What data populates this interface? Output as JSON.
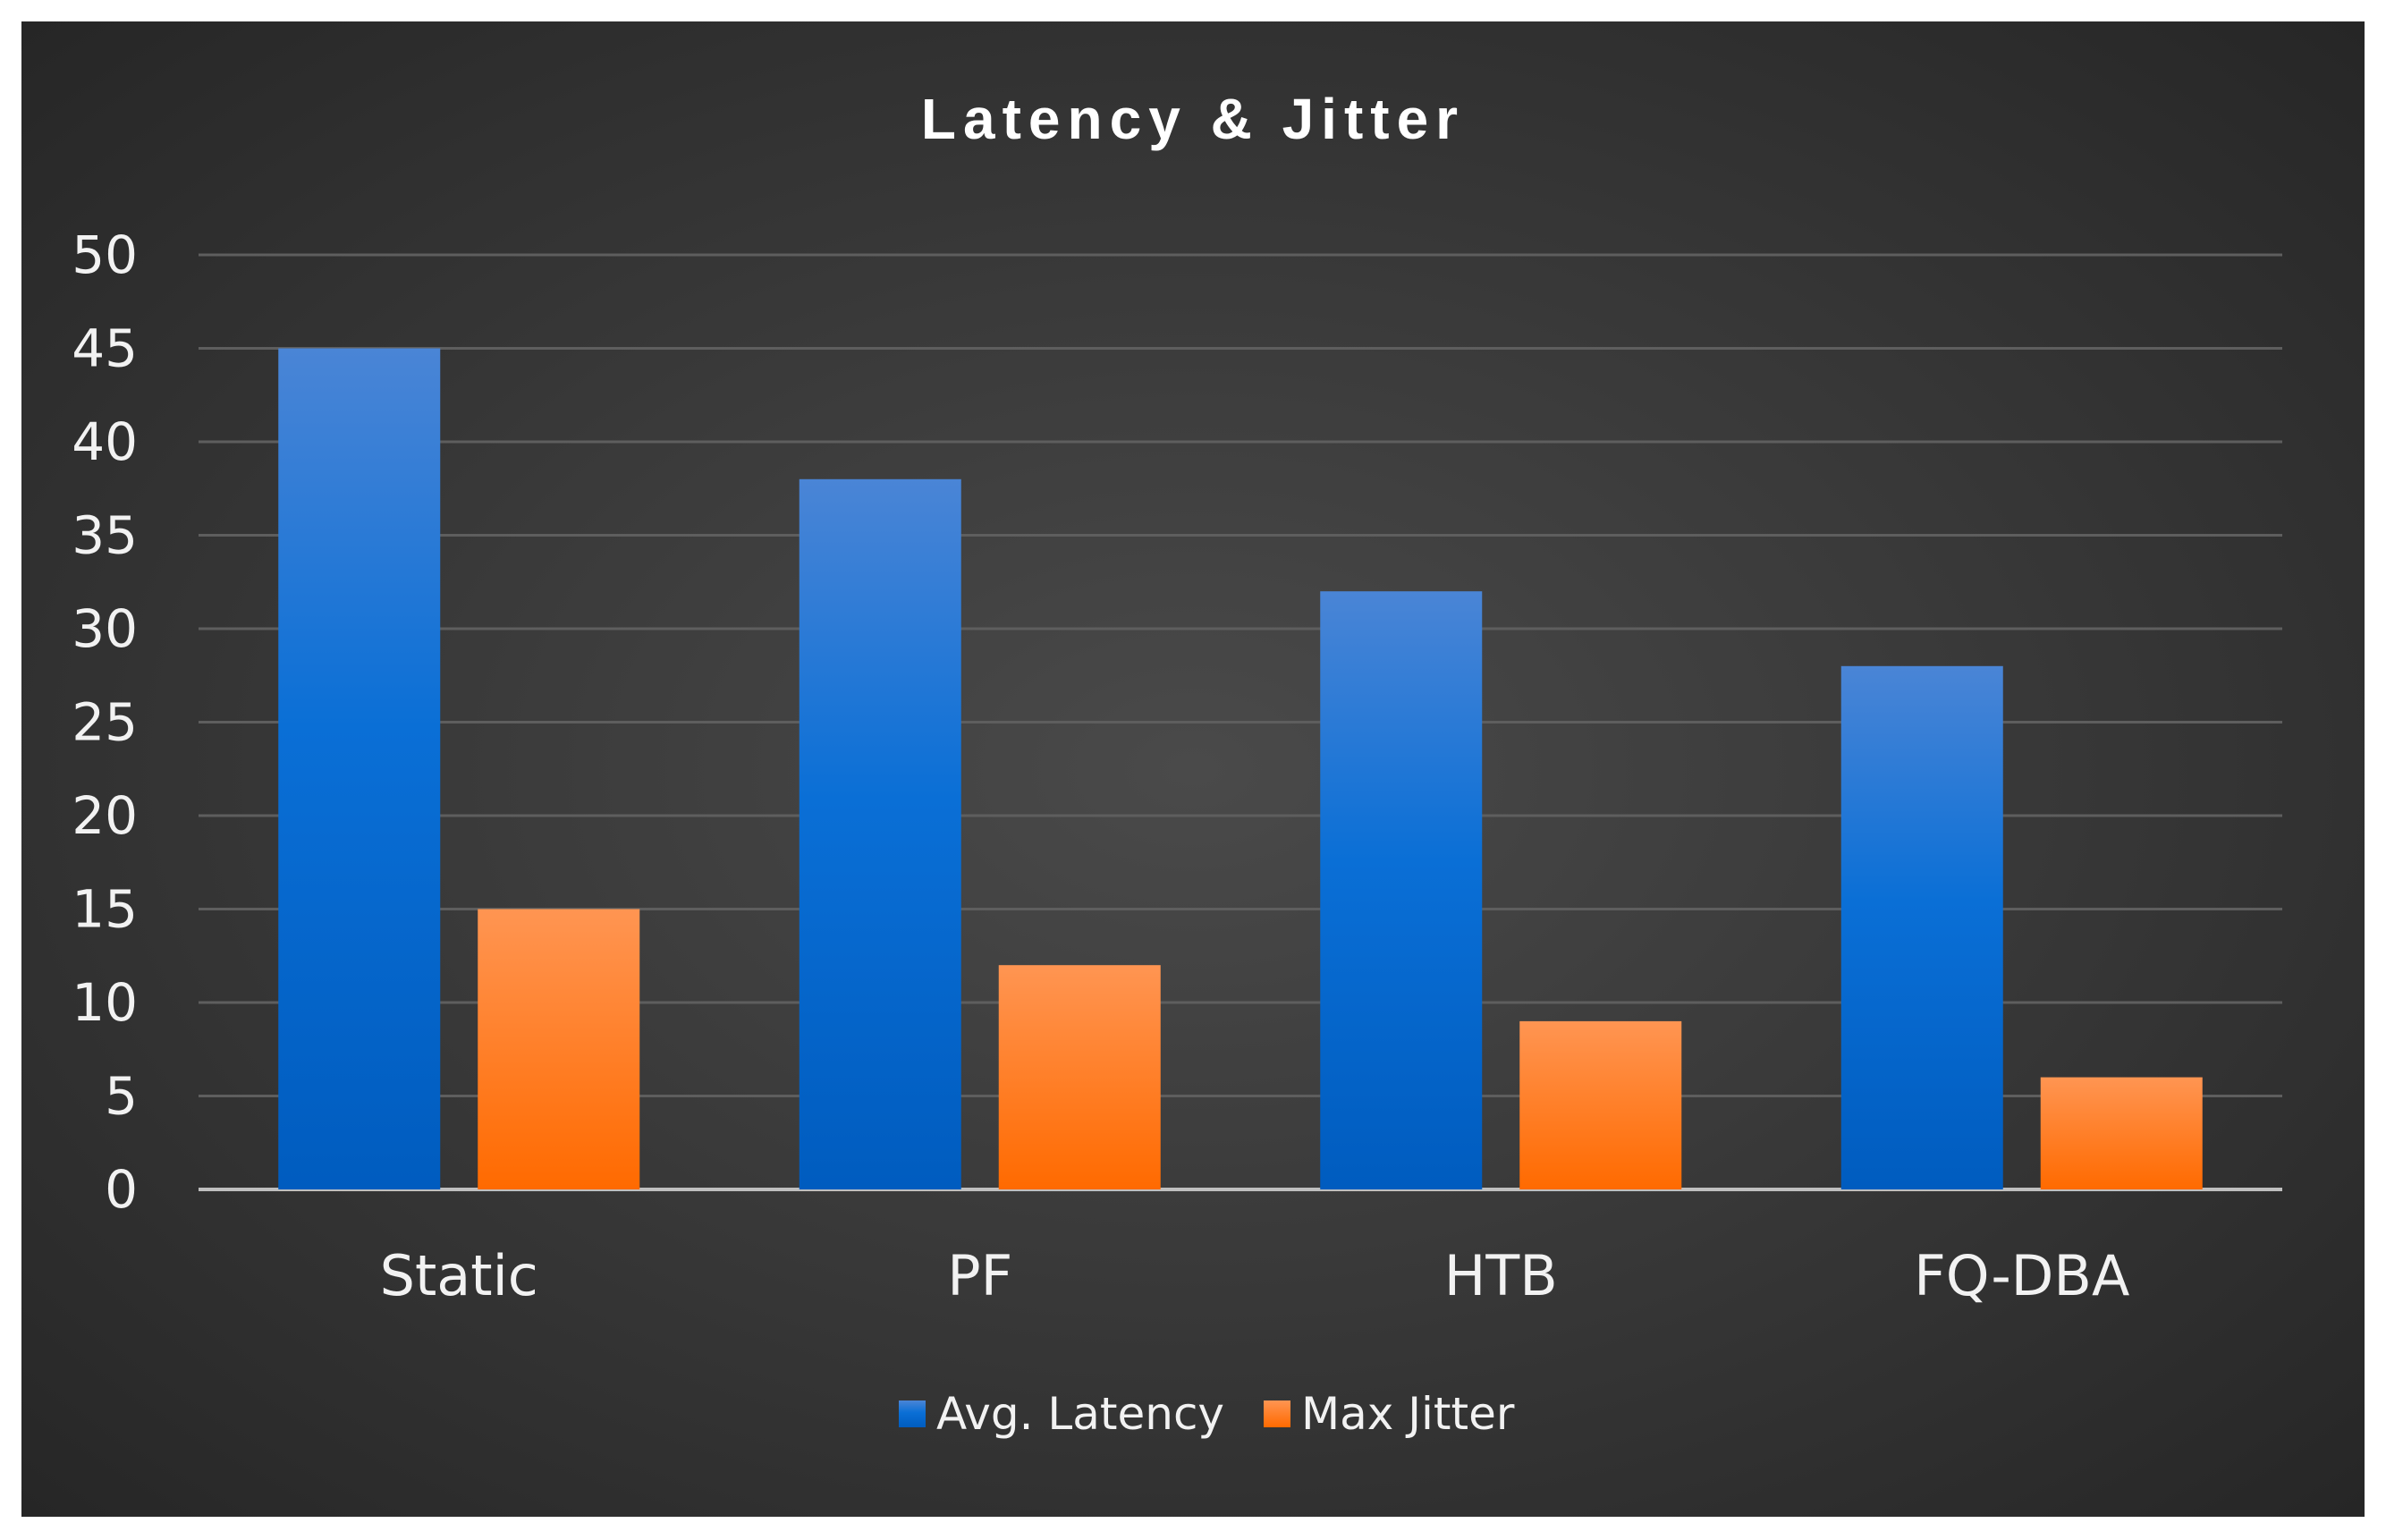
{
  "chart_data": {
    "type": "bar",
    "title": "Latency & Jitter",
    "categories": [
      "Static",
      "PF",
      "HTB",
      "FQ-DBA"
    ],
    "series": [
      {
        "name": "Avg. Latency",
        "values": [
          45,
          38,
          32,
          28
        ],
        "color": "#0070d8"
      },
      {
        "name": "Max Jitter",
        "values": [
          15,
          12,
          9,
          6
        ],
        "color": "#ff7a1a"
      }
    ],
    "yticks": [
      "0",
      "5",
      "10",
      "15",
      "20",
      "25",
      "30",
      "35",
      "40",
      "45",
      "50"
    ],
    "ylim": [
      0,
      50
    ],
    "grid": true,
    "legend": "bottom-center",
    "xlabel": "",
    "ylabel": ""
  }
}
